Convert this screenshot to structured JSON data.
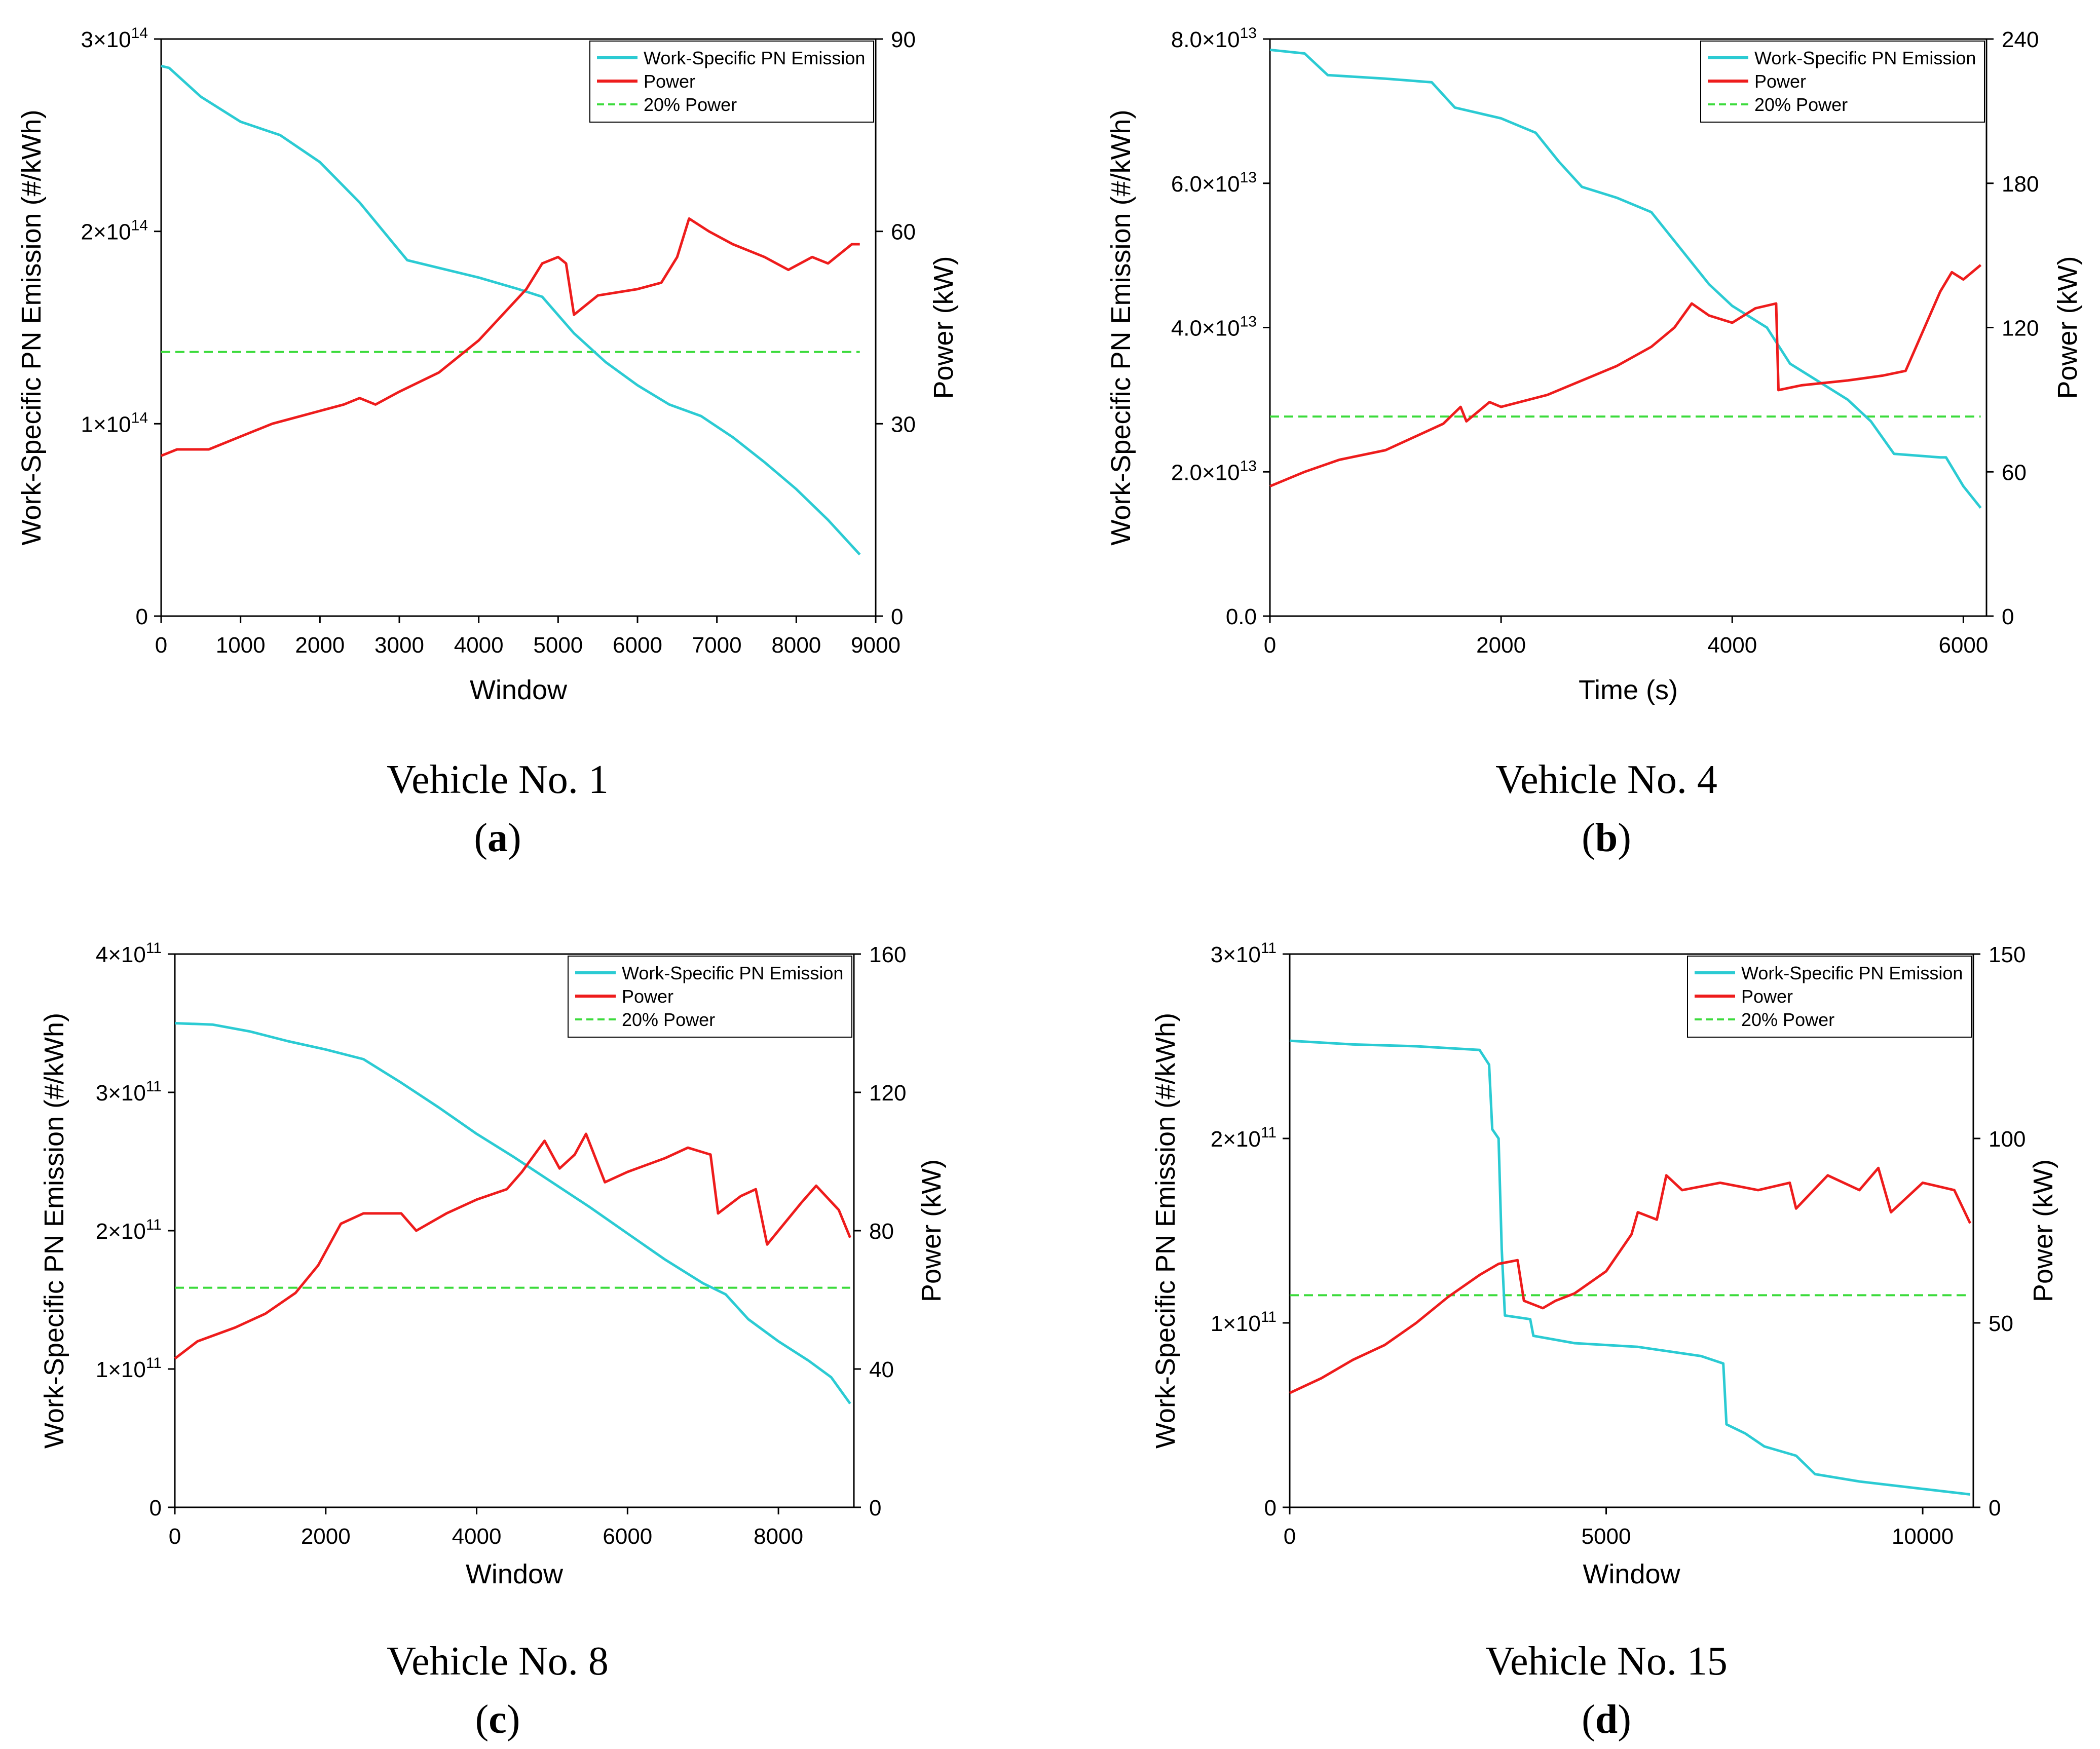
{
  "colors": {
    "pn": "#2BCBD3",
    "power": "#EE1C1C",
    "threshold": "#3BDB3B",
    "axis": "#000000"
  },
  "chart_data": [
    {
      "type": "line",
      "title": "Vehicle No. 1",
      "label": "a",
      "xlabel": "Window",
      "ylabel": "Work-Specific PN Emission (#/kWh)",
      "y2label": "Power (kW)",
      "xlim": [
        0,
        9000
      ],
      "ylim": [
        0,
        300000000000000.0
      ],
      "y2lim": [
        0,
        90
      ],
      "xticks": [
        0,
        1000,
        2000,
        3000,
        4000,
        5000,
        6000,
        7000,
        8000,
        9000
      ],
      "xtick_labels": [
        "0",
        "1000",
        "2000",
        "3000",
        "4000",
        "5000",
        "6000",
        "7000",
        "8000",
        "9000"
      ],
      "yticks": [
        0,
        100000000000000.0,
        200000000000000.0,
        300000000000000.0
      ],
      "ytick_labels": [
        {
          "m": "0",
          "e": ""
        },
        {
          "m": "1×10",
          "e": "14"
        },
        {
          "m": "2×10",
          "e": "14"
        },
        {
          "m": "3×10",
          "e": "14"
        }
      ],
      "y2ticks": [
        0,
        30,
        60,
        90
      ],
      "y2tick_labels": [
        "0",
        "30",
        "60",
        "90"
      ],
      "legend": [
        "Work-Specific PN Emission",
        "Power",
        "20% Power"
      ],
      "legend_position": "top-right",
      "pn_series": {
        "name": "Work-Specific PN Emission",
        "x": [
          0,
          100,
          500,
          1000,
          1500,
          2000,
          2500,
          2900,
          3100,
          3500,
          4000,
          4500,
          4800,
          5200,
          5600,
          6000,
          6400,
          6800,
          7200,
          7600,
          8000,
          8400,
          8800
        ],
        "y": [
          286000000000000.0,
          285000000000000.0,
          270000000000000.0,
          257000000000000.0,
          250000000000000.0,
          236000000000000.0,
          215000000000000.0,
          195000000000000.0,
          185000000000000.0,
          181000000000000.0,
          176000000000000.0,
          170000000000000.0,
          166000000000000.0,
          147000000000000.0,
          132000000000000.0,
          120000000000000.0,
          110000000000000.0,
          104000000000000.0,
          93000000000000.0,
          80000000000000.0,
          66000000000000.0,
          50000000000000.0,
          32000000000000.0
        ]
      },
      "power_series": {
        "name": "Power",
        "x": [
          0,
          200,
          600,
          1000,
          1400,
          1700,
          2000,
          2300,
          2500,
          2700,
          3000,
          3500,
          4000,
          4300,
          4600,
          4800,
          5000,
          5100,
          5200,
          5500,
          6000,
          6300,
          6500,
          6650,
          6900,
          7200,
          7600,
          7900,
          8200,
          8400,
          8700,
          8800
        ],
        "y": [
          25,
          26,
          26,
          28,
          30,
          31,
          32,
          33,
          34,
          33,
          35,
          38,
          43,
          47,
          51,
          55,
          56,
          55,
          47,
          50,
          51,
          52,
          56,
          62,
          60,
          58,
          56,
          54,
          56,
          55,
          58,
          58
        ]
      },
      "threshold": {
        "name": "20% Power",
        "y2": 41.2,
        "x_end": 8800
      }
    },
    {
      "type": "line",
      "title": "Vehicle No. 4",
      "label": "b",
      "xlabel": "Time (s)",
      "ylabel": "Work-Specific PN Emission (#/kWh)",
      "y2label": "Power (kW)",
      "xlim": [
        0,
        6200
      ],
      "ylim": [
        0,
        80000000000000.0
      ],
      "y2lim": [
        0,
        240
      ],
      "xticks": [
        0,
        2000,
        4000,
        6000
      ],
      "xtick_labels": [
        "0",
        "2000",
        "4000",
        "6000"
      ],
      "yticks": [
        0,
        20000000000000.0,
        40000000000000.0,
        60000000000000.0,
        80000000000000.0
      ],
      "ytick_labels": [
        {
          "m": "0.0",
          "e": ""
        },
        {
          "m": "2.0×10",
          "e": "13"
        },
        {
          "m": "4.0×10",
          "e": "13"
        },
        {
          "m": "6.0×10",
          "e": "13"
        },
        {
          "m": "8.0×10",
          "e": "13"
        }
      ],
      "y2ticks": [
        0,
        60,
        120,
        180,
        240
      ],
      "y2tick_labels": [
        "0",
        "60",
        "120",
        "180",
        "240"
      ],
      "legend": [
        "Work-Specific PN Emission",
        "Power",
        "20% Power"
      ],
      "legend_position": "top-right",
      "pn_series": {
        "name": "Work-Specific PN Emission",
        "x": [
          0,
          300,
          500,
          1000,
          1400,
          1600,
          2000,
          2300,
          2500,
          2700,
          3000,
          3300,
          3500,
          3800,
          4000,
          4300,
          4500,
          4800,
          5000,
          5200,
          5400,
          5800,
          5850,
          6000,
          6150
        ],
        "y": [
          78500000000000.0,
          78000000000000.0,
          75000000000000.0,
          74500000000000.0,
          74000000000000.0,
          70500000000000.0,
          69000000000000.0,
          67000000000000.0,
          63000000000000.0,
          59500000000000.0,
          58000000000000.0,
          56000000000000.0,
          52000000000000.0,
          46000000000000.0,
          43000000000000.0,
          40000000000000.0,
          35000000000000.0,
          32000000000000.0,
          30000000000000.0,
          27000000000000.0,
          22500000000000.0,
          22000000000000.0,
          22000000000000.0,
          18000000000000.0,
          15000000000000.0
        ]
      },
      "power_series": {
        "name": "Power",
        "x": [
          0,
          300,
          600,
          1000,
          1500,
          1650,
          1700,
          1900,
          2000,
          2400,
          2800,
          3000,
          3300,
          3500,
          3650,
          3800,
          4000,
          4200,
          4380,
          4400,
          4600,
          5000,
          5300,
          5500,
          5800,
          5900,
          6000,
          6150
        ],
        "y": [
          54,
          60,
          65,
          69,
          80,
          87,
          81,
          89,
          87,
          92,
          100,
          104,
          112,
          120,
          130,
          125,
          122,
          128,
          130,
          94,
          96,
          98,
          100,
          102,
          135,
          143,
          140,
          146
        ]
      },
      "threshold": {
        "name": "20% Power",
        "y2": 83,
        "x_end": 6150
      }
    },
    {
      "type": "line",
      "title": "Vehicle No. 8",
      "label": "c",
      "xlabel": "Window",
      "ylabel": "Work-Specific PN Emission (#/kWh)",
      "y2label": "Power (kW)",
      "xlim": [
        0,
        9000
      ],
      "ylim": [
        0,
        400000000000.0
      ],
      "y2lim": [
        0,
        160
      ],
      "xticks": [
        0,
        2000,
        4000,
        6000,
        8000
      ],
      "xtick_labels": [
        "0",
        "2000",
        "4000",
        "6000",
        "8000"
      ],
      "yticks": [
        0,
        100000000000.0,
        200000000000.0,
        300000000000.0,
        400000000000.0
      ],
      "ytick_labels": [
        {
          "m": "0",
          "e": ""
        },
        {
          "m": "1×10",
          "e": "11"
        },
        {
          "m": "2×10",
          "e": "11"
        },
        {
          "m": "3×10",
          "e": "11"
        },
        {
          "m": "4×10",
          "e": "11"
        }
      ],
      "y2ticks": [
        0,
        40,
        80,
        120,
        160
      ],
      "y2tick_labels": [
        "0",
        "40",
        "80",
        "120",
        "160"
      ],
      "legend": [
        "Work-Specific PN Emission",
        "Power",
        "20% Power"
      ],
      "legend_position": "top-right",
      "pn_series": {
        "name": "Work-Specific PN Emission",
        "x": [
          0,
          500,
          1000,
          1500,
          2000,
          2500,
          3000,
          3500,
          4000,
          4500,
          5000,
          5500,
          6000,
          6500,
          7000,
          7300,
          7600,
          8000,
          8400,
          8700,
          8950
        ],
        "y": [
          350000000000.0,
          349000000000.0,
          344000000000.0,
          337000000000.0,
          331000000000.0,
          324000000000.0,
          307000000000.0,
          289000000000.0,
          270000000000.0,
          253000000000.0,
          235000000000.0,
          217000000000.0,
          198000000000.0,
          179000000000.0,
          162000000000.0,
          154000000000.0,
          136000000000.0,
          120000000000.0,
          106000000000.0,
          94000000000.0,
          75000000000.0
        ]
      },
      "power_series": {
        "name": "Power",
        "x": [
          0,
          300,
          800,
          1200,
          1600,
          1900,
          2200,
          2500,
          3000,
          3200,
          3600,
          4000,
          4400,
          4600,
          4900,
          5100,
          5300,
          5450,
          5700,
          6000,
          6500,
          6800,
          7100,
          7200,
          7500,
          7700,
          7850,
          8000,
          8300,
          8500,
          8800,
          8950
        ],
        "y": [
          43,
          48,
          52,
          56,
          62,
          70,
          82,
          85,
          85,
          80,
          85,
          89,
          92,
          97,
          106,
          98,
          102,
          108,
          94,
          97,
          101,
          104,
          102,
          85,
          90,
          92,
          76,
          80,
          88,
          93,
          86,
          78
        ]
      },
      "threshold": {
        "name": "20% Power",
        "y2": 63.5,
        "x_end": 8950
      }
    },
    {
      "type": "line",
      "title": "Vehicle No. 15",
      "label": "d",
      "xlabel": "Window",
      "ylabel": "Work-Specific PN Emission (#/kWh)",
      "y2label": "Power (kW)",
      "xlim": [
        0,
        10800
      ],
      "ylim": [
        0,
        300000000000.0
      ],
      "y2lim": [
        0,
        150
      ],
      "xticks": [
        0,
        5000,
        10000
      ],
      "xtick_labels": [
        "0",
        "5000",
        "10000"
      ],
      "yticks": [
        0,
        100000000000.0,
        200000000000.0,
        300000000000.0
      ],
      "ytick_labels": [
        {
          "m": "0",
          "e": ""
        },
        {
          "m": "1×10",
          "e": "11"
        },
        {
          "m": "2×10",
          "e": "11"
        },
        {
          "m": "3×10",
          "e": "11"
        }
      ],
      "y2ticks": [
        0,
        50,
        100,
        150
      ],
      "y2tick_labels": [
        "0",
        "50",
        "100",
        "150"
      ],
      "legend": [
        "Work-Specific PN Emission",
        "Power",
        "20% Power"
      ],
      "legend_position": "top-right",
      "pn_series": {
        "name": "Work-Specific PN Emission",
        "x": [
          0,
          1000,
          2000,
          3000,
          3150,
          3200,
          3300,
          3350,
          3400,
          3800,
          3850,
          4500,
          5500,
          6500,
          6850,
          6900,
          7200,
          7500,
          8000,
          8300,
          9000,
          10000,
          10750
        ],
        "y": [
          253000000000.0,
          251000000000.0,
          250000000000.0,
          248000000000.0,
          240000000000.0,
          205000000000.0,
          200000000000.0,
          140000000000.0,
          104000000000.0,
          102000000000.0,
          93000000000.0,
          89000000000.0,
          87000000000.0,
          82000000000.0,
          78000000000.0,
          45000000000.0,
          40000000000.0,
          33000000000.0,
          28000000000.0,
          18000000000.0,
          14000000000.0,
          10000000000.0,
          7000000000.0
        ]
      },
      "power_series": {
        "name": "Power",
        "x": [
          0,
          500,
          1000,
          1500,
          2000,
          2500,
          3000,
          3300,
          3600,
          3700,
          4000,
          4200,
          4500,
          5000,
          5400,
          5500,
          5800,
          5950,
          6200,
          6800,
          7400,
          7900,
          8000,
          8500,
          9000,
          9300,
          9500,
          10000,
          10500,
          10750
        ],
        "y": [
          31,
          35,
          40,
          44,
          50,
          57,
          63,
          66,
          67,
          56,
          54,
          56,
          58,
          64,
          74,
          80,
          78,
          90,
          86,
          88,
          86,
          88,
          81,
          90,
          86,
          92,
          80,
          88,
          86,
          77
        ]
      },
      "threshold": {
        "name": "20% Power",
        "y2": 57.5,
        "x_end": 10750
      }
    }
  ]
}
